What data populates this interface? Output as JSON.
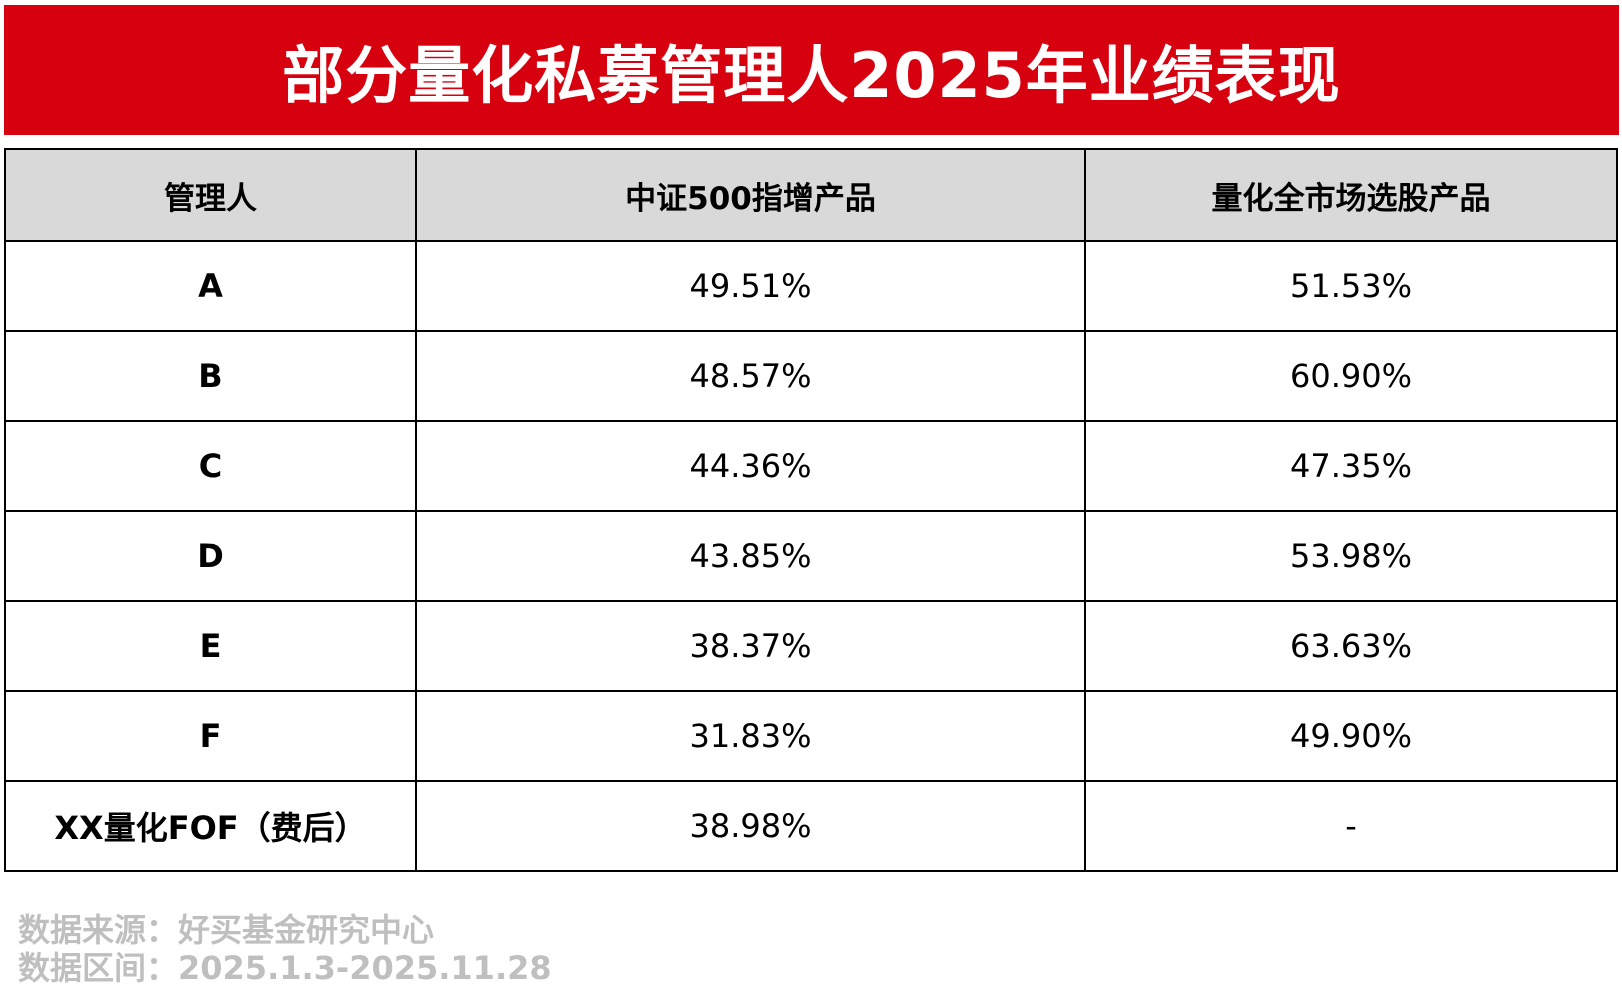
{
  "title": "部分量化私募管理人2025年业绩表现",
  "table": {
    "headers": [
      "管理人",
      "中证500指增产品",
      "量化全市场选股产品"
    ],
    "rows": [
      [
        "A",
        "49.51%",
        "51.53%"
      ],
      [
        "B",
        "48.57%",
        "60.90%"
      ],
      [
        "C",
        "44.36%",
        "47.35%"
      ],
      [
        "D",
        "43.85%",
        "53.98%"
      ],
      [
        "E",
        "38.37%",
        "63.63%"
      ],
      [
        "F",
        "31.83%",
        "49.90%"
      ],
      [
        "XX量化FOF（费后）",
        "38.98%",
        "-"
      ]
    ]
  },
  "footer": {
    "source": "数据来源：好买基金研究中心",
    "period": "数据区间：2025.1.3-2025.11.28"
  }
}
